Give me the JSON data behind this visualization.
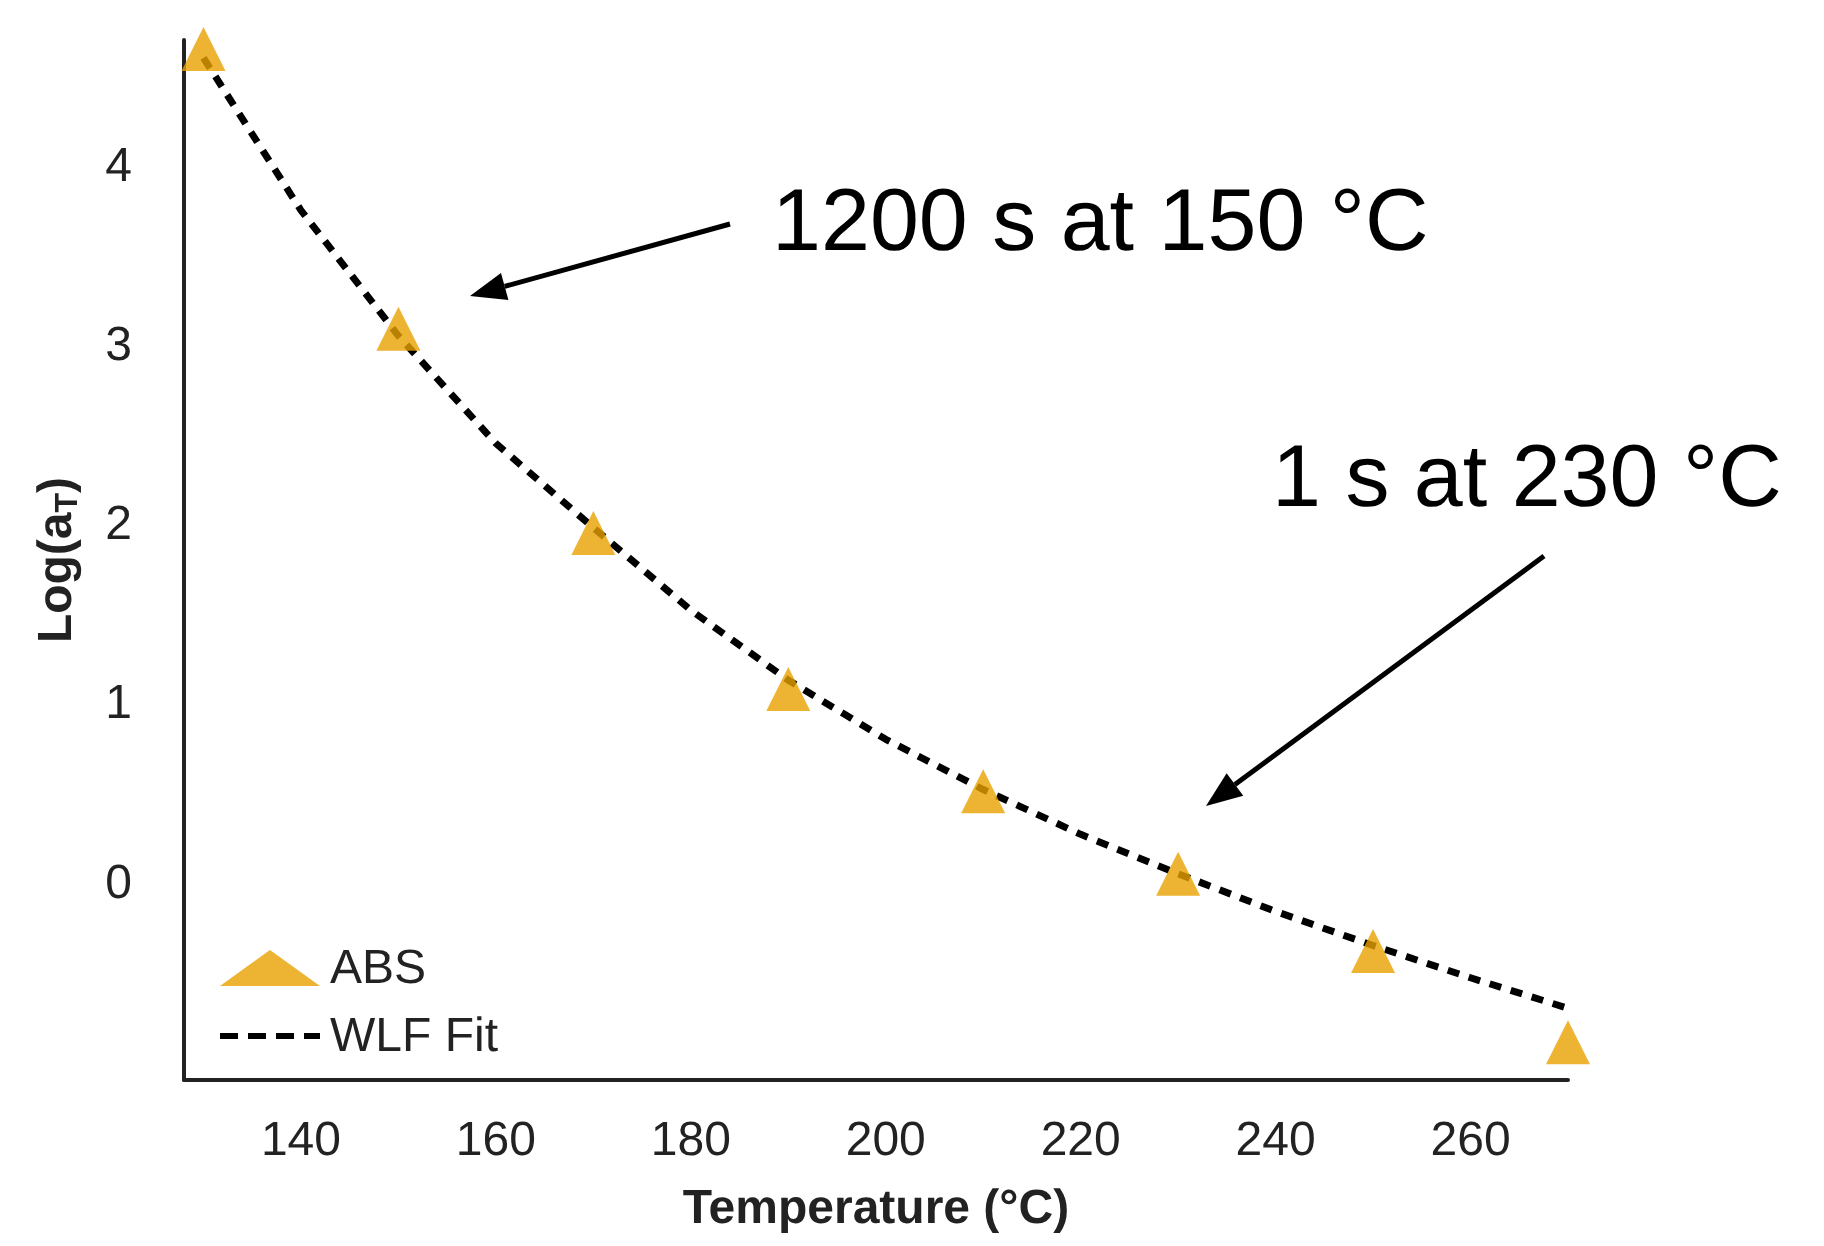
{
  "chart_data": {
    "type": "scatter",
    "xlabel": "Temperature (°C)",
    "ylabel": "Log(a$_{T}$)",
    "xlim": [
      128,
      270
    ],
    "xticks": [
      140,
      160,
      180,
      200,
      220,
      240,
      260
    ],
    "ylim": [
      -1.1,
      4.7
    ],
    "yticks": [
      0,
      1,
      2,
      3,
      4
    ],
    "legend": "bottom left",
    "series": [
      {
        "name": "ABS",
        "marker": "triangle",
        "color": "#e8a000",
        "x": [
          130,
          150,
          170,
          190,
          210,
          230,
          250,
          270
        ],
        "values": [
          4.65,
          3.09,
          1.95,
          1.08,
          0.51,
          0.05,
          -0.38,
          -0.89
        ]
      },
      {
        "name": "WLF Fit",
        "type": "line",
        "marker": "none",
        "line_style": "dashed",
        "color": "#000000",
        "x": [
          130,
          140,
          150,
          160,
          170,
          180,
          190,
          200,
          210,
          220,
          230,
          240,
          250,
          260,
          270
        ],
        "values": [
          4.6,
          3.75,
          3.05,
          2.45,
          1.98,
          1.52,
          1.13,
          0.8,
          0.52,
          0.27,
          0.05,
          -0.16,
          -0.35,
          -0.53,
          -0.7
        ]
      }
    ],
    "annotations": [
      "1200 s at 150 °C",
      "1 s at 230 °C"
    ]
  }
}
